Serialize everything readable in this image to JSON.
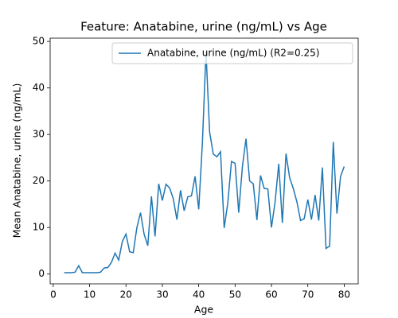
{
  "chart_data": {
    "type": "line",
    "title": "Feature: Anatabine, urine (ng/mL) vs Age",
    "x_label": "Age",
    "y_label": "Mean Anatabine, urine (ng/mL)",
    "x": [
      3,
      4,
      5,
      6,
      7,
      8,
      9,
      10,
      11,
      12,
      13,
      14,
      15,
      16,
      17,
      18,
      19,
      20,
      21,
      22,
      23,
      24,
      25,
      26,
      27,
      28,
      29,
      30,
      31,
      32,
      33,
      34,
      35,
      36,
      37,
      38,
      39,
      40,
      41,
      42,
      43,
      44,
      45,
      46,
      47,
      48,
      49,
      50,
      51,
      52,
      53,
      54,
      55,
      56,
      57,
      58,
      59,
      60,
      61,
      62,
      63,
      64,
      65,
      66,
      67,
      68,
      69,
      70,
      71,
      72,
      73,
      74,
      75,
      76,
      77,
      78,
      79,
      80
    ],
    "series": [
      {
        "name": "Anatabine, urine (ng/mL) (R2=0.25)",
        "color": "#1f77b4",
        "values": [
          0.3,
          0.3,
          0.3,
          0.4,
          1.8,
          0.3,
          0.3,
          0.3,
          0.3,
          0.3,
          0.4,
          1.3,
          1.4,
          2.5,
          4.5,
          3.0,
          7.0,
          8.6,
          4.8,
          4.6,
          10.0,
          13.2,
          8.5,
          6.1,
          16.7,
          8.1,
          19.4,
          15.8,
          19.3,
          18.5,
          16.2,
          11.7,
          18.0,
          13.6,
          16.6,
          16.8,
          21.0,
          13.9,
          28.0,
          47.8,
          30.5,
          25.8,
          25.2,
          26.3,
          9.9,
          15.3,
          24.2,
          23.8,
          13.2,
          23.0,
          29.1,
          20.0,
          19.4,
          11.6,
          21.2,
          18.4,
          18.3,
          10.0,
          15.5,
          23.7,
          11.0,
          25.9,
          20.7,
          18.4,
          15.5,
          11.5,
          11.9,
          16.0,
          11.7,
          17.0,
          11.5,
          22.9,
          5.5,
          6.0,
          28.4,
          13.0,
          21.0,
          23.1
        ]
      }
    ],
    "xlim": [
      -0.85,
      83.85
    ],
    "ylim": [
      -2.1,
      50.7
    ],
    "xticks": [
      0,
      10,
      20,
      30,
      40,
      50,
      60,
      70,
      80
    ],
    "yticks": [
      0,
      10,
      20,
      30,
      40,
      50
    ],
    "legend": "upper right"
  }
}
